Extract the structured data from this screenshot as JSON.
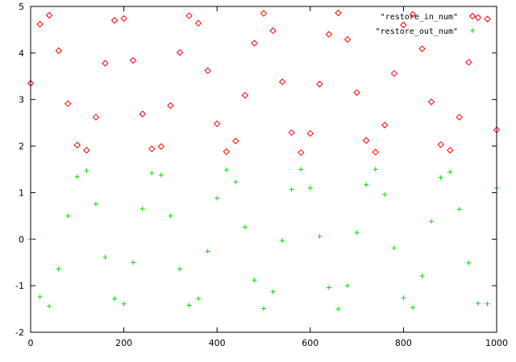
{
  "chart_data": {
    "type": "scatter",
    "title": "",
    "xlabel": "",
    "ylabel": "",
    "xlim": [
      0,
      1000
    ],
    "ylim": [
      -2,
      5
    ],
    "xticks": [
      0,
      200,
      400,
      600,
      800,
      1000
    ],
    "yticks": [
      -2,
      -1,
      0,
      1,
      2,
      3,
      4,
      5
    ],
    "xtick_labels": [
      "0",
      "200",
      "400",
      "600",
      "800",
      "1000"
    ],
    "ytick_labels": [
      "-2",
      "-1",
      "0",
      "1",
      "2",
      "3",
      "4",
      "5"
    ],
    "grid": false,
    "legend_position": "top-right",
    "series": [
      {
        "name": "\"restore_in_num\"",
        "color": "#ff0000",
        "marker": "diamond",
        "x": [
          0,
          20,
          40,
          60,
          80,
          100,
          120,
          140,
          160,
          180,
          200,
          220,
          240,
          260,
          280,
          300,
          320,
          340,
          360,
          380,
          400,
          420,
          440,
          460,
          480,
          500,
          520,
          540,
          560,
          580,
          600,
          620,
          640,
          660,
          680,
          700,
          720,
          740,
          760,
          780,
          800,
          820,
          840,
          860,
          880,
          900,
          920,
          940,
          960,
          980,
          1000
        ],
        "y": [
          3.35,
          4.62,
          4.81,
          4.05,
          2.91,
          2.02,
          1.91,
          2.62,
          3.78,
          4.7,
          4.74,
          3.84,
          2.69,
          1.94,
          1.99,
          2.87,
          4.01,
          4.8,
          4.64,
          3.62,
          2.48,
          1.88,
          2.11,
          3.09,
          4.21,
          4.85,
          4.48,
          3.38,
          2.29,
          1.86,
          2.27,
          3.33,
          4.4,
          4.86,
          4.29,
          3.15,
          2.12,
          1.87,
          2.45,
          3.56,
          4.6,
          4.83,
          4.09,
          2.95,
          2.03,
          1.91,
          2.62,
          3.8,
          4.76,
          4.73,
          2.35
        ]
      },
      {
        "name": "\"restore_out_num\"",
        "color": "#00dd00",
        "marker": "plus",
        "x": [
          0,
          20,
          40,
          60,
          80,
          100,
          120,
          140,
          160,
          180,
          200,
          220,
          240,
          260,
          280,
          300,
          320,
          340,
          360,
          380,
          400,
          420,
          440,
          460,
          480,
          500,
          520,
          540,
          560,
          580,
          600,
          620,
          640,
          660,
          680,
          700,
          720,
          740,
          760,
          780,
          800,
          820,
          840,
          860,
          880,
          900,
          920,
          940,
          960,
          980,
          1000
        ],
        "y": [
          0.0,
          -1.24,
          -1.44,
          -0.64,
          0.5,
          1.34,
          1.47,
          0.76,
          -0.39,
          -1.28,
          -1.39,
          -0.5,
          0.65,
          1.42,
          1.38,
          0.5,
          -0.64,
          -1.42,
          -1.28,
          -0.26,
          0.88,
          1.49,
          1.23,
          0.26,
          -0.88,
          -1.49,
          -1.13,
          -0.03,
          1.07,
          1.5,
          1.1,
          0.06,
          -1.04,
          -1.5,
          -1.0,
          0.14,
          1.17,
          1.5,
          0.96,
          -0.19,
          -1.26,
          -1.47,
          -0.79,
          0.38,
          1.32,
          1.44,
          0.64,
          -0.51,
          -1.38,
          -1.39,
          1.1
        ]
      }
    ]
  }
}
